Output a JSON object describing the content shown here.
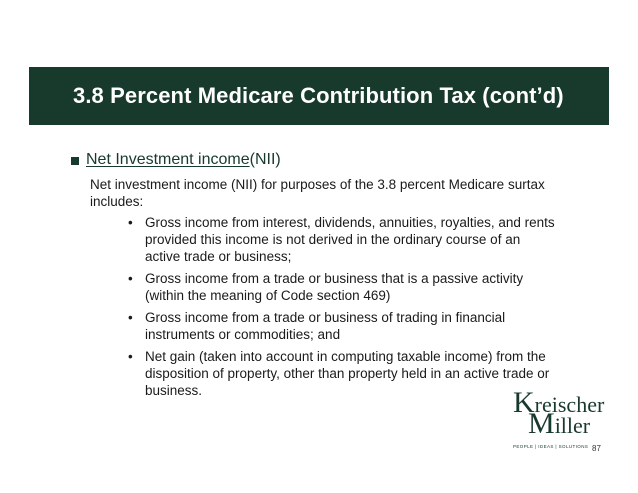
{
  "slide": {
    "title": "3.8 Percent Medicare Contribution Tax (cont’d)",
    "heading": {
      "underlined": "Net Investment income ",
      "rest": "(NII)"
    },
    "intro": "Net investment income (NII) for purposes of the 3.8 percent Medicare surtax includes:",
    "bullet_char": "•",
    "items": [
      "Gross income from interest, dividends, annuities, royalties, and rents provided this income is not derived in the ordinary course of an active trade or business;",
      "Gross income from a trade or business that is a passive activity (within the meaning of Code section 469)",
      "Gross income from a trade or business of trading in financial instruments or commodities; and",
      "Net gain (taken into account in computing taxable income) from the disposition of property, other than property held in an active trade or business."
    ],
    "page_number": "87"
  },
  "logo": {
    "line1_initial": "K",
    "line1_rest": "reischer",
    "line2_initial": "M",
    "line2_rest": "iller",
    "tagline": "PEOPLE | IDEAS | SOLUTIONS"
  },
  "colors": {
    "brand_green": "#173a2c",
    "text": "#1a1a1a"
  }
}
